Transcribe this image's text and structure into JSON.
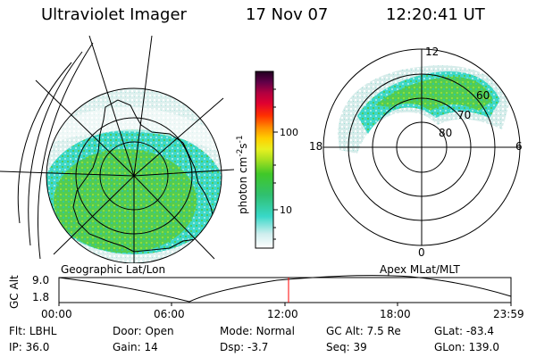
{
  "header": {
    "title": "Ultraviolet Imager",
    "date": "17 Nov 07",
    "time": "12:20:41 UT"
  },
  "colorbar": {
    "label": "photon cm",
    "label_exp": "-2",
    "label_unit": "s",
    "label_unit_exp": "-1",
    "tick_100": "100",
    "tick_10": "10"
  },
  "panels": {
    "left_caption": "Geographic Lat/Lon",
    "right_caption": "Apex  MLat/MLT"
  },
  "polar_plot": {
    "mlt_12": "12",
    "mlt_18": "18",
    "mlt_6": "6",
    "mlt_0": "0",
    "lat_60": "60",
    "lat_70": "70",
    "lat_80": "80"
  },
  "altitude_strip": {
    "label": "GC Alt",
    "y_top": "9.0",
    "y_bottom": "1.8",
    "times": [
      "00:00",
      "06:00",
      "12:00",
      "18:00",
      "23:59"
    ],
    "current_time_marker": "12:20:41"
  },
  "info": {
    "filter_label": "Flt:",
    "filter_value": "LBHL",
    "ip_label": "IP:",
    "ip_value": "36.0",
    "door_label": "Door:",
    "door_value": "Open",
    "gain_label": "Gain:",
    "gain_value": "14",
    "mode_label": "Mode:",
    "mode_value": "Normal",
    "dsp_label": "Dsp:",
    "dsp_value": "-3.7",
    "gcalt_label": "GC Alt:",
    "gcalt_value": "7.5 Re",
    "seq_label": "Seq:",
    "seq_value": "39",
    "glat_label": "GLat:",
    "glat_value": "-83.4",
    "glon_label": "GLon:",
    "glon_value": "139.0"
  },
  "colors": {
    "aurora_green": "#3ec43e",
    "aurora_cyan": "#36d6c8",
    "aurora_light": "#bfe6e2",
    "marker_red": "#ff0000"
  }
}
